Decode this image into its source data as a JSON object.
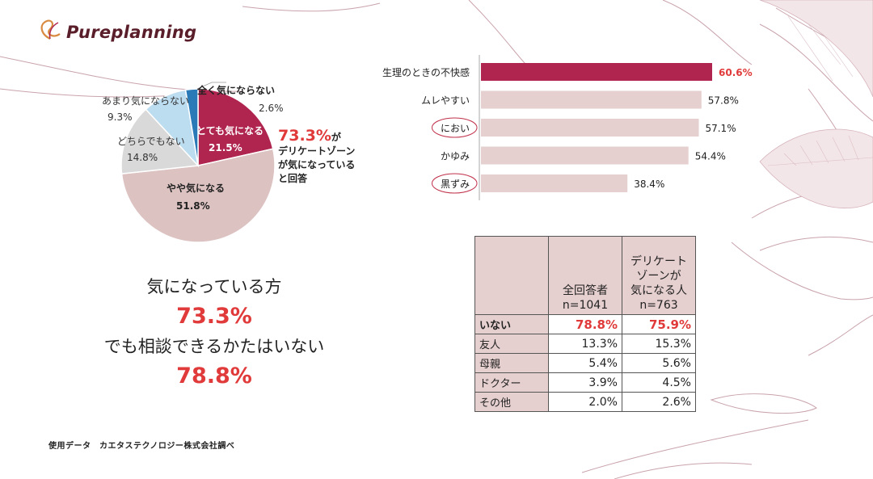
{
  "brand": {
    "name": "Pureplanning",
    "logo_icon": "ribbon-leaf-icon"
  },
  "colors": {
    "accent_red": "#e03a3a",
    "wine": "#b0254f",
    "pink": "#ddc2c2",
    "gray": "#d9d9d9",
    "light_blue": "#bcdcf0",
    "blue": "#2a7ab8"
  },
  "chart_data": [
    {
      "type": "pie",
      "labels": [
        "とても気になる",
        "やや気になる",
        "どちらでもない",
        "あまり気にならない",
        "全く気にならない"
      ],
      "values": [
        21.5,
        51.8,
        14.8,
        9.3,
        2.6
      ],
      "value_labels": [
        "21.5%",
        "51.8%",
        "14.8%",
        "9.3%",
        "2.6%"
      ],
      "colors": [
        "#b0254f",
        "#ddc2c2",
        "#d9d9d9",
        "#bcdcf0",
        "#2a7ab8"
      ],
      "callout": {
        "highlight": "73.3%",
        "suffix": "が",
        "line2": "デリケートゾーン",
        "line3": "が気になっている",
        "line4": "と回答"
      }
    },
    {
      "type": "bar",
      "orientation": "horizontal",
      "categories": [
        "生理のときの不快感",
        "ムレやすい",
        "におい",
        "かゆみ",
        "黒ずみ"
      ],
      "values": [
        60.6,
        57.8,
        57.1,
        54.4,
        38.4
      ],
      "value_labels": [
        "60.6%",
        "57.8%",
        "57.1%",
        "54.4%",
        "38.4%"
      ],
      "circled": [
        "におい",
        "黒ずみ"
      ],
      "highlight_index": 0
    },
    {
      "type": "table",
      "columns": [
        "",
        "全回答者\nn=1041",
        "デリケート\nゾーンが\n気になる人\nn=763"
      ],
      "rows": [
        {
          "label": "いない",
          "values": [
            "78.8%",
            "75.9%"
          ],
          "highlight": true
        },
        {
          "label": "友人",
          "values": [
            "13.3%",
            "15.3%"
          ]
        },
        {
          "label": "母親",
          "values": [
            "5.4%",
            "5.6%"
          ]
        },
        {
          "label": "ドクター",
          "values": [
            "3.9%",
            "4.5%"
          ]
        },
        {
          "label": "その他",
          "values": [
            "2.0%",
            "2.6%"
          ]
        }
      ]
    }
  ],
  "summary": {
    "line1": "気になっている方",
    "num1": "73.3%",
    "line2": "でも相談できるかたはいない",
    "num2": "78.8%"
  },
  "source": "使用データ　カエタステクノロジー株式会社調べ"
}
